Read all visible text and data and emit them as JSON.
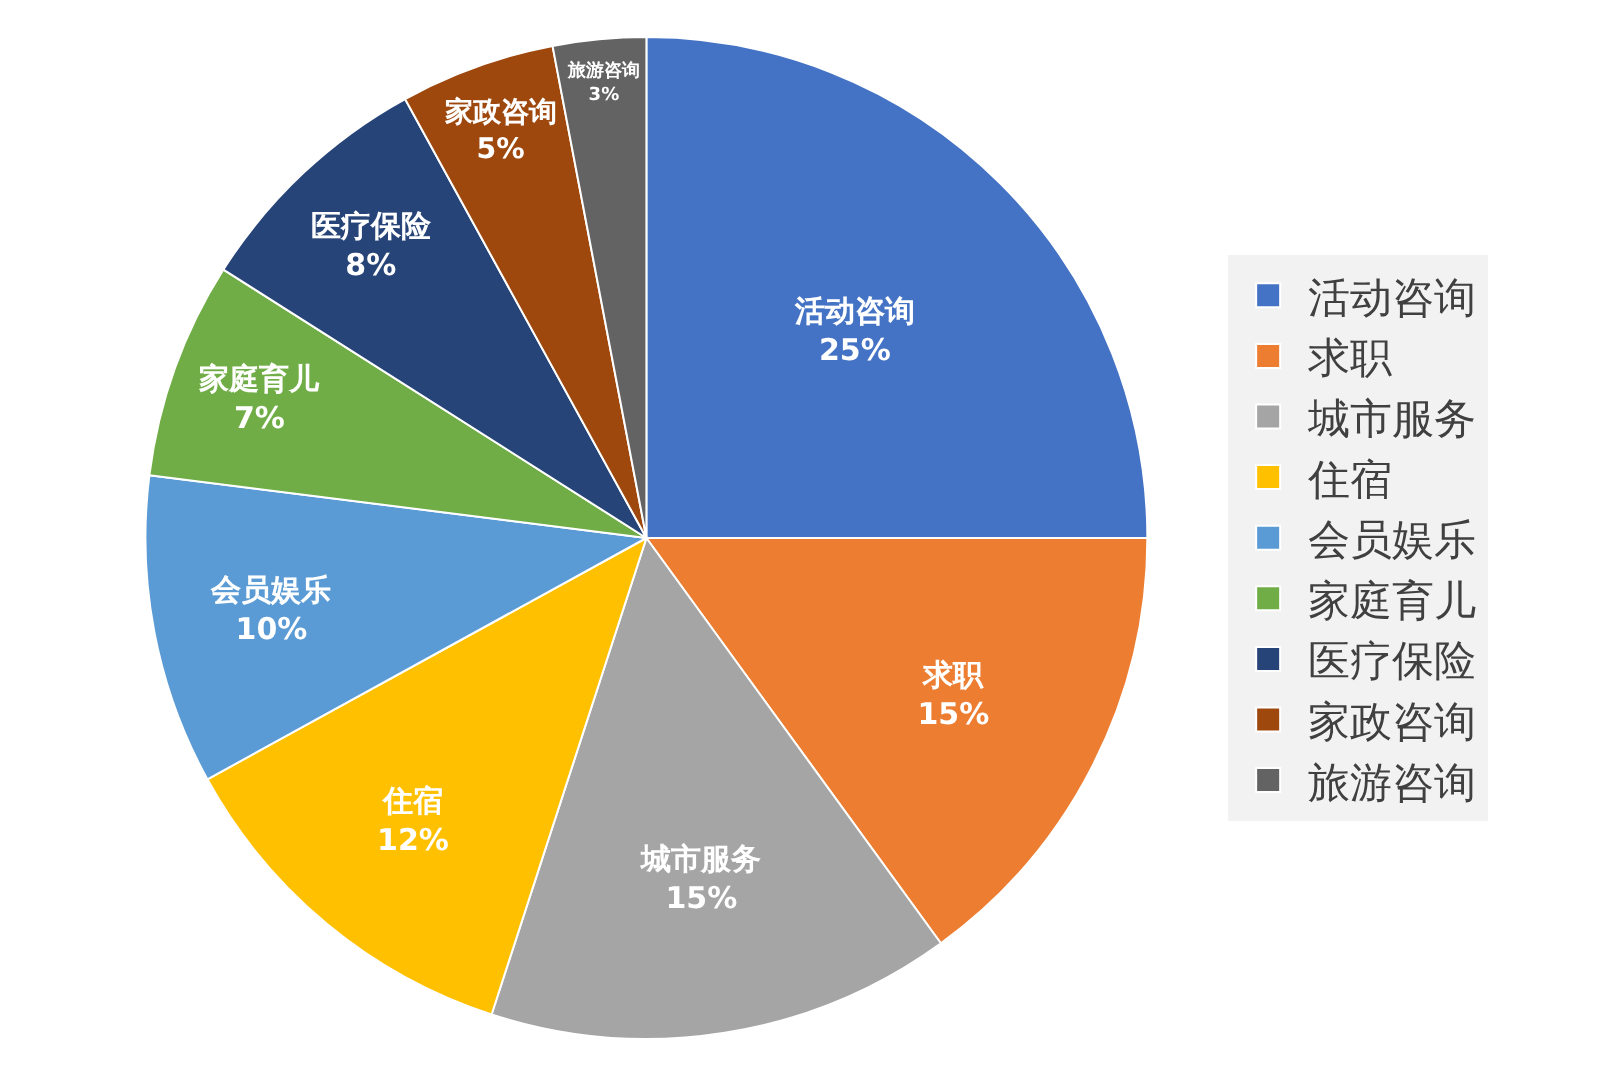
{
  "chart_data": {
    "type": "pie",
    "categories": [
      "活动咨询",
      "求职",
      "城市服务",
      "住宿",
      "会员娱乐",
      "家庭育儿",
      "医疗保险",
      "家政咨询",
      "旅游咨询"
    ],
    "values": [
      25,
      15,
      15,
      12,
      10,
      7,
      8,
      5,
      3
    ],
    "value_labels": [
      "25%",
      "15%",
      "15%",
      "12%",
      "10%",
      "7%",
      "8%",
      "5%",
      "3%"
    ],
    "colors": [
      "#4472c4",
      "#ed7d31",
      "#a5a5a5",
      "#ffc000",
      "#5b9bd5",
      "#70ad47",
      "#264478",
      "#9e480e",
      "#636363"
    ],
    "legend": "right"
  }
}
